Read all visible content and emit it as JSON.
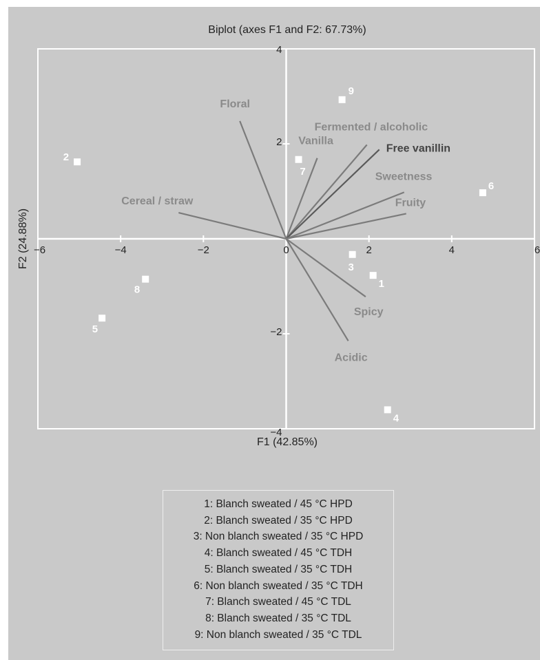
{
  "colors": {
    "panel_bg": "#c9c9c9",
    "frame": "#ffffff",
    "vector": "#7b7b7b",
    "vector_highlight": "#5a5a5a",
    "label": "#8a8a8a",
    "label_highlight": "#444444",
    "point": "#ffffff",
    "text": "#222222"
  },
  "chart_data": {
    "type": "scatter",
    "subtype": "pca-biplot",
    "title": "Biplot (axes F1 and F2: 67.73%)",
    "xlabel": "F1 (42.85%)",
    "ylabel": "F2 (24.88%)",
    "xlim": [
      -6,
      6
    ],
    "ylim": [
      -4,
      4
    ],
    "xticks": [
      "−6",
      "−4",
      "−2",
      "0",
      "2",
      "4",
      "6"
    ],
    "yticks": [
      "4",
      "2",
      "0",
      "−2",
      "−4"
    ],
    "grid": false,
    "observations": [
      {
        "label": "1",
        "x": 2.1,
        "y": -0.77
      },
      {
        "label": "2",
        "x": -5.05,
        "y": 1.62
      },
      {
        "label": "3",
        "x": 1.6,
        "y": -0.33
      },
      {
        "label": "4",
        "x": 2.45,
        "y": -3.6
      },
      {
        "label": "5",
        "x": -4.45,
        "y": -1.67
      },
      {
        "label": "6",
        "x": 4.75,
        "y": 0.97
      },
      {
        "label": "7",
        "x": 0.3,
        "y": 1.67
      },
      {
        "label": "8",
        "x": -3.4,
        "y": -0.85
      },
      {
        "label": "9",
        "x": 1.35,
        "y": 2.93
      }
    ],
    "variables": [
      {
        "name": "Floral",
        "x": -1.12,
        "y": 2.48,
        "highlight": false
      },
      {
        "name": "Fermented / alcoholic",
        "x": 1.95,
        "y": 1.98,
        "highlight": false
      },
      {
        "name": "Vanilla",
        "x": 0.75,
        "y": 1.7,
        "highlight": false
      },
      {
        "name": "Free vanillin",
        "x": 2.25,
        "y": 1.88,
        "highlight": true
      },
      {
        "name": "Sweetness",
        "x": 2.85,
        "y": 0.98,
        "highlight": false
      },
      {
        "name": "Fruity",
        "x": 2.9,
        "y": 0.53,
        "highlight": false
      },
      {
        "name": "Cereal / straw",
        "x": -2.6,
        "y": 0.55,
        "highlight": false
      },
      {
        "name": "Spicy",
        "x": 1.92,
        "y": -1.22,
        "highlight": false
      },
      {
        "name": "Acidic",
        "x": 1.5,
        "y": -2.15,
        "highlight": false
      }
    ]
  },
  "legend": {
    "items": [
      "1: Blanch sweated / 45 °C HPD",
      "2: Blanch sweated / 35 °C HPD",
      "3: Non blanch sweated / 35 °C HPD",
      "4: Blanch sweated / 45 °C TDH",
      "5: Blanch sweated / 35 °C TDH",
      "6: Non blanch sweated / 35 °C TDH",
      "7: Blanch sweated / 45 °C TDL",
      "8: Blanch sweated / 35 °C TDL",
      "9: Non blanch sweated / 35 °C TDL"
    ]
  }
}
